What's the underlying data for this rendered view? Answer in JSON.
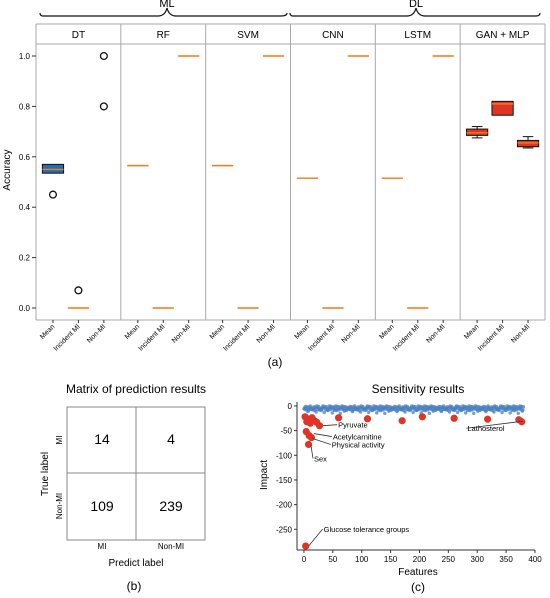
{
  "panel_labels": {
    "a": "(a)",
    "b": "(b)",
    "c": "(c)"
  },
  "groups": [
    {
      "label": "ML"
    },
    {
      "label": "DL"
    }
  ],
  "chart_data": [
    {
      "type": "box",
      "panel": "a",
      "ylabel": "Accuracy",
      "ylim": [
        -0.05,
        1.08
      ],
      "yticks": [
        "0.0",
        "0.2",
        "0.4",
        "0.6",
        "0.8",
        "1.0"
      ],
      "categories": [
        "Mean",
        "Incident MI",
        "Non-MI"
      ],
      "grid": false,
      "facets": [
        {
          "group": "ML",
          "title": "DT",
          "boxes": [
            {
              "category": "Mean",
              "median": 0.55,
              "q1": 0.535,
              "q3": 0.57,
              "whisker_low": 0.535,
              "whisker_high": 0.57,
              "fill": "#1f6fb5",
              "outliers": [
                0.45
              ]
            },
            {
              "category": "Incident MI",
              "median": 0.0,
              "outliers": [
                0.07
              ]
            },
            {
              "category": "Non-MI",
              "median": null,
              "outliers": [
                1.0,
                0.8
              ]
            }
          ]
        },
        {
          "group": "ML",
          "title": "RF",
          "boxes": [
            {
              "category": "Mean",
              "median": 0.565
            },
            {
              "category": "Incident MI",
              "median": 0.0
            },
            {
              "category": "Non-MI",
              "median": 1.0
            }
          ]
        },
        {
          "group": "ML",
          "title": "SVM",
          "boxes": [
            {
              "category": "Mean",
              "median": 0.565
            },
            {
              "category": "Incident MI",
              "median": 0.0
            },
            {
              "category": "Non-MI",
              "median": 1.0
            }
          ]
        },
        {
          "group": "DL",
          "title": "CNN",
          "boxes": [
            {
              "category": "Mean",
              "median": 0.515
            },
            {
              "category": "Incident MI",
              "median": 0.0
            },
            {
              "category": "Non-MI",
              "median": 1.0
            }
          ]
        },
        {
          "group": "DL",
          "title": "LSTM",
          "boxes": [
            {
              "category": "Mean",
              "median": 0.515
            },
            {
              "category": "Incident MI",
              "median": 0.0
            },
            {
              "category": "Non-MI",
              "median": 1.0
            }
          ]
        },
        {
          "group": "DL",
          "title": "GAN + MLP",
          "boxes": [
            {
              "category": "Mean",
              "median": 0.695,
              "q1": 0.685,
              "q3": 0.71,
              "whisker_low": 0.675,
              "whisker_high": 0.72,
              "fill": "#e03426"
            },
            {
              "category": "Incident MI",
              "median": 0.81,
              "q1": 0.765,
              "q3": 0.82,
              "whisker_low": 0.765,
              "whisker_high": 0.82,
              "fill": "#e03426"
            },
            {
              "category": "Non-MI",
              "median": 0.655,
              "q1": 0.64,
              "q3": 0.665,
              "whisker_low": 0.635,
              "whisker_high": 0.68,
              "fill": "#e03426"
            }
          ]
        }
      ],
      "colors": {
        "median": "#f07a16",
        "outline": "#111111"
      }
    },
    {
      "type": "table",
      "panel": "b",
      "title": "Matrix of prediction results",
      "xlabel": "Predict label",
      "ylabel": "True label",
      "columns": [
        "MI",
        "Non-MI"
      ],
      "rows": [
        "MI",
        "Non-MI"
      ],
      "cells": [
        [
          "14",
          "4"
        ],
        [
          "109",
          "239"
        ]
      ]
    },
    {
      "type": "scatter",
      "panel": "c",
      "title": "Sensitivity results",
      "xlabel": "Features",
      "ylabel": "Impact",
      "xlim": [
        -12,
        400
      ],
      "ylim": [
        -292,
        8
      ],
      "xticks": [
        0,
        50,
        100,
        150,
        200,
        250,
        300,
        350,
        400
      ],
      "yticks": [
        0,
        -50,
        -100,
        -150,
        -200,
        -250
      ],
      "colors": {
        "points": "#4a7fc1",
        "highlight": "#e03426"
      },
      "highlight_points": [
        {
          "x": 2,
          "y": -22
        },
        {
          "x": 5,
          "y": -32
        },
        {
          "x": 8,
          "y": -27
        },
        {
          "x": 11,
          "y": -35
        },
        {
          "x": 14,
          "y": -24
        },
        {
          "x": 18,
          "y": -30
        },
        {
          "x": 22,
          "y": -33
        },
        {
          "x": 27,
          "y": -40
        },
        {
          "x": 4,
          "y": -52
        },
        {
          "x": 9,
          "y": -60
        },
        {
          "x": 13,
          "y": -64
        },
        {
          "x": 8,
          "y": -78
        },
        {
          "x": 3,
          "y": -284
        },
        {
          "x": 60,
          "y": -24
        },
        {
          "x": 110,
          "y": -26
        },
        {
          "x": 170,
          "y": -30
        },
        {
          "x": 205,
          "y": -22
        },
        {
          "x": 260,
          "y": -25
        },
        {
          "x": 318,
          "y": -27
        },
        {
          "x": 372,
          "y": -28
        },
        {
          "x": 377,
          "y": -32
        }
      ],
      "annotations": [
        {
          "text": "Pyruvate",
          "x": 28,
          "y": -40
        },
        {
          "text": "Acetylcarnitine",
          "x": 12,
          "y": -56
        },
        {
          "text": "Physical activity",
          "x": 10,
          "y": -66
        },
        {
          "text": "Sex",
          "x": 7,
          "y": -80
        },
        {
          "text": "Lathosterol",
          "x": 373,
          "y": -31
        },
        {
          "text": "Glucose tolerance groups",
          "x": 3,
          "y": -284
        }
      ]
    }
  ]
}
